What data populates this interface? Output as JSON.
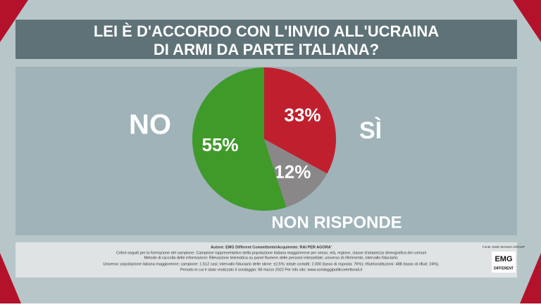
{
  "chart_data": {
    "type": "pie",
    "title_lines": [
      "LEI È D'ACCORDO CON L'INVIO ALL'UCRAINA",
      "DI ARMI DA PARTE ITALIANA?"
    ],
    "categories": [
      "SÌ",
      "NON RISPONDE",
      "NO"
    ],
    "values": [
      33,
      12,
      55
    ],
    "value_labels": [
      "33%",
      "12%",
      "55%"
    ],
    "colors": [
      "#c0202e",
      "#8a8789",
      "#3f9a2a"
    ]
  },
  "footnote": [
    "Autore: EMG Different Committente/Acquirente: RAI PER AGORA'",
    "Criteri seguiti per la formazione del campione: Campione rappresentativo della popolazione italiana maggiorenne per sesso, età, regione, classe d'ampiezza demografica dei comuni",
    "Metodo di raccolta delle informazioni: Rilevazione telematica su panel Numero delle persone interpellate, universo di riferimento, intervallo fiduciario:",
    "Universo: popolazione italiana maggiorenne; campione: 1.512 casi; intervallo fiduciario delle stime: ±2,5%; totale contatti: 2.000 (tasso di risposta: 76%); rifiuti/sostituzioni: 488 (tasso di rifiuti: 24%).",
    "Periodo in cui è stato realizzato il sondaggio: 08 marzo 2022 Per info sito: www.sondaggipoliticoelettorali.it"
  ],
  "logo": {
    "source": "Fonte: EMG MASSIA GROUP",
    "name": "EMG",
    "tagline": "DIFFERENT"
  }
}
